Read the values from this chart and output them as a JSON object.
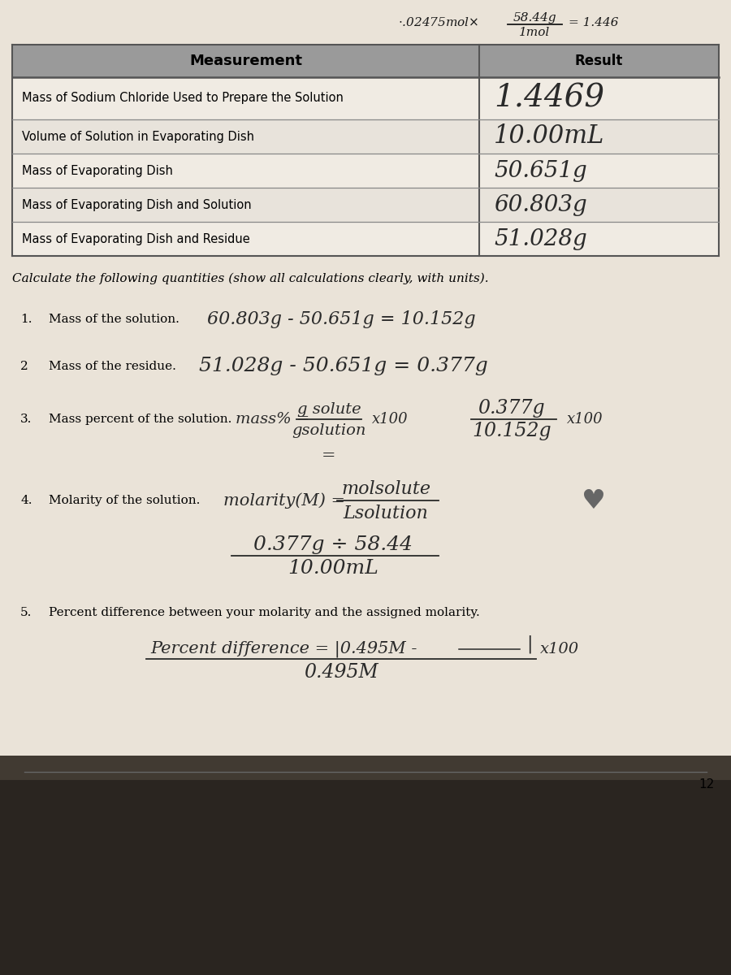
{
  "bg_paper": "#e8e0d5",
  "bg_fabric": "#2a2520",
  "paper_color": "#f0ebe3",
  "table_header_bg": "#9a9a9a",
  "table_row_bg": "#f0ebe3",
  "table_alt_bg": "#e8e3db",
  "border_color": "#555555",
  "text_color": "#1a1a1a",
  "handwrite_color": "#2a2a2a",
  "table_rows": [
    [
      "Mass of Sodium Chloride Used to Prepare the Solution",
      "1.4469"
    ],
    [
      "Volume of Solution in Evaporating Dish",
      "10.00mL"
    ],
    [
      "Mass of Evaporating Dish",
      "50.651g"
    ],
    [
      "Mass of Evaporating Dish and Solution",
      "60.803g"
    ],
    [
      "Mass of Evaporating Dish and Residue",
      "51.028g"
    ]
  ],
  "page_number": "12"
}
